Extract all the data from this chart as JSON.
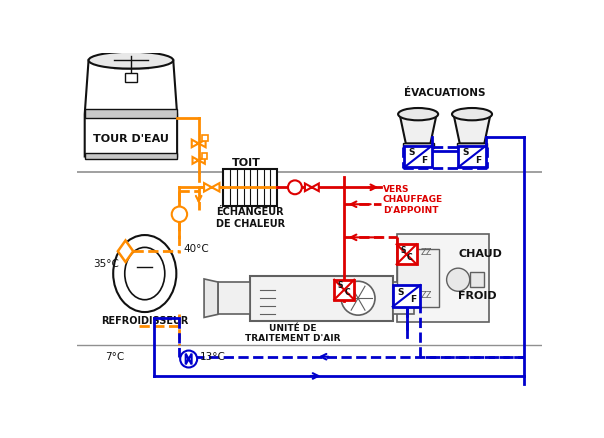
{
  "bg_color": "#ffffff",
  "orange": "#FF8C00",
  "red": "#DD0000",
  "blue": "#0000CC",
  "gray": "#909090",
  "dark_gray": "#606060",
  "light_gray": "#C8C8C8",
  "black": "#111111",
  "lw": 2.0,
  "labels": {
    "tour_deau": "TOUR D'EAU",
    "refroidisseur": "REFROIDISSEUR",
    "echangeur": "ÉCHANGEUR\nDE CHALEUR",
    "unite_air": "UNITÉ DE\nTRAITEMENT D'AIR",
    "evacuations": "ÉVACUATIONS",
    "toit": "TOIT",
    "vers_chauffage": "VERS\nCHAUFFAGE\nD'APPOINT",
    "chaud": "CHAUD",
    "froid": "FROID",
    "temp_40": "40°C",
    "temp_35": "35°C",
    "temp_7": "7°C",
    "temp_13": "13°C"
  }
}
